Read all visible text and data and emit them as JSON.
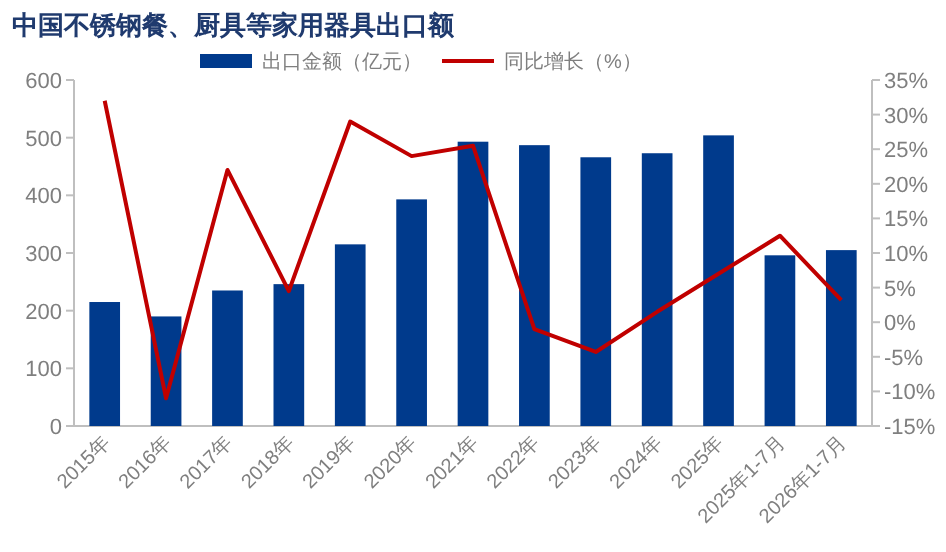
{
  "chart_data": {
    "type": "bar",
    "title": "中国不锈钢餐、厨具等家用器具出口额",
    "categories": [
      "2015年",
      "2016年",
      "2017年",
      "2018年",
      "2019年",
      "2020年",
      "2021年",
      "2022年",
      "2023年",
      "2024年",
      "2025年",
      "2025年1-7月",
      "2026年1-7月"
    ],
    "series": [
      {
        "name": "出口金额（亿元）",
        "color": "#003a8c",
        "values": [
          215,
          190,
          235,
          246,
          315,
          393,
          493,
          487,
          466,
          473,
          504,
          296,
          305
        ]
      },
      {
        "name": "同比增长（%）",
        "type": "line",
        "axis": "y2",
        "color": "#c00000",
        "values": [
          32,
          -11,
          22,
          4.5,
          29,
          24,
          25.5,
          -1,
          -4.3,
          1.5,
          7,
          12.5,
          3.2
        ]
      }
    ],
    "ylim": [
      0,
      600
    ],
    "yticks": [
      0,
      100,
      200,
      300,
      400,
      500,
      600
    ],
    "y2lim": [
      -15,
      35
    ],
    "y2ticks": [
      {
        "value": -15,
        "label": "-15%"
      },
      {
        "value": -10,
        "label": "-10%"
      },
      {
        "value": -5,
        "label": "-5%"
      },
      {
        "value": 0,
        "label": "0%"
      },
      {
        "value": 5,
        "label": "5%"
      },
      {
        "value": 10,
        "label": "10%"
      },
      {
        "value": 15,
        "label": "15%"
      },
      {
        "value": 20,
        "label": "20%"
      },
      {
        "value": 25,
        "label": "25%"
      },
      {
        "value": 30,
        "label": "30%"
      },
      {
        "value": 35,
        "label": "35%"
      }
    ],
    "legend": "top",
    "grid": false
  }
}
